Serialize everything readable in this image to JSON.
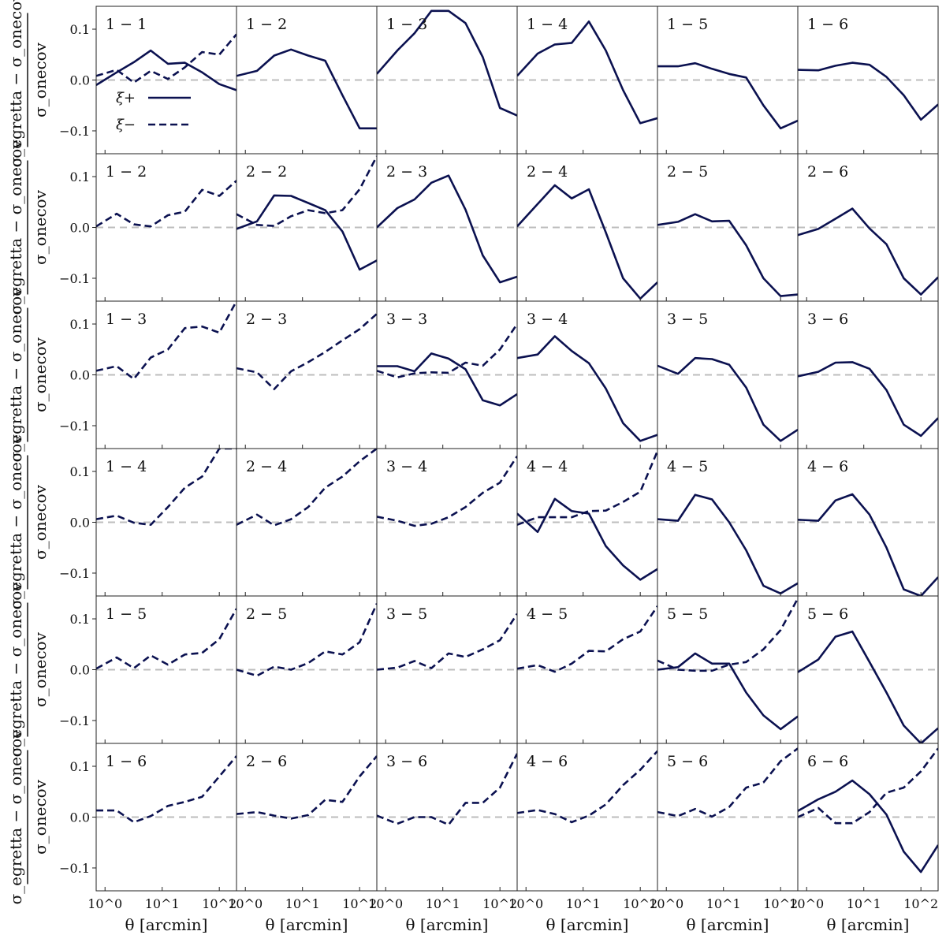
{
  "colors": {
    "series": "#0b1150",
    "zero_line": "#bdbdbd",
    "frame": "#222222"
  },
  "chart_data": {
    "type": "line",
    "grid": false,
    "layout": "6x6 small multiples",
    "xlabel": "θ [arcmin]",
    "ylabel_numerator": "σ_egretta − σ_onecov",
    "ylabel_denominator": "σ_onecov",
    "xscale": "log",
    "xlim": [
      0.7,
      200
    ],
    "ylim": [
      -0.145,
      0.145
    ],
    "x_ticks": [
      1,
      10,
      100
    ],
    "x_tick_labels": [
      "10^0",
      "10^1",
      "10^2"
    ],
    "y_ticks": [
      -0.1,
      0.0,
      0.1
    ],
    "y_tick_labels": [
      "−0.1",
      "0.0",
      "0.1"
    ],
    "reference_line": 0.0,
    "x": [
      0.7,
      1.6,
      3.2,
      6.3,
      12.6,
      25,
      50,
      100,
      200
    ],
    "legend": {
      "location": "upper-left panel",
      "entries": [
        {
          "label": "ξ+",
          "style": "solid"
        },
        {
          "label": "ξ−",
          "style": "dashed"
        }
      ]
    },
    "panels": [
      {
        "row": 0,
        "col": 0,
        "label": "1 − 1",
        "xi_plus": [
          -0.01,
          0.015,
          0.035,
          0.058,
          0.032,
          0.034,
          0.015,
          -0.008,
          -0.02
        ],
        "xi_minus": [
          0.008,
          0.02,
          -0.005,
          0.018,
          0.002,
          0.025,
          0.055,
          0.05,
          0.09
        ]
      },
      {
        "row": 0,
        "col": 1,
        "label": "1 − 2",
        "xi_plus": [
          0.008,
          0.018,
          0.048,
          0.06,
          0.048,
          0.038,
          -0.03,
          -0.095,
          -0.095
        ]
      },
      {
        "row": 0,
        "col": 2,
        "label": "1 − 3",
        "xi_plus": [
          0.012,
          0.058,
          0.092,
          0.136,
          0.136,
          0.112,
          0.045,
          -0.055,
          -0.07
        ]
      },
      {
        "row": 0,
        "col": 3,
        "label": "1 − 4",
        "xi_plus": [
          0.008,
          0.052,
          0.07,
          0.073,
          0.115,
          0.058,
          -0.02,
          -0.085,
          -0.075
        ]
      },
      {
        "row": 0,
        "col": 4,
        "label": "1 − 5",
        "xi_plus": [
          0.027,
          0.027,
          0.033,
          0.022,
          0.012,
          0.005,
          -0.05,
          -0.095,
          -0.08
        ]
      },
      {
        "row": 0,
        "col": 5,
        "label": "1 − 6",
        "xi_plus": [
          0.02,
          0.019,
          0.028,
          0.034,
          0.03,
          0.006,
          -0.03,
          -0.078,
          -0.048
        ]
      },
      {
        "row": 1,
        "col": 0,
        "label": "1 − 2",
        "xi_minus": [
          0.002,
          0.027,
          0.006,
          0.002,
          0.024,
          0.031,
          0.074,
          0.062,
          0.092
        ]
      },
      {
        "row": 1,
        "col": 1,
        "label": "2 − 2",
        "xi_plus": [
          -0.003,
          0.012,
          0.063,
          0.062,
          0.048,
          0.034,
          -0.008,
          -0.083,
          -0.065
        ],
        "xi_minus": [
          0.026,
          0.005,
          0.003,
          0.022,
          0.034,
          0.028,
          0.034,
          0.075,
          0.14
        ]
      },
      {
        "row": 1,
        "col": 2,
        "label": "2 − 3",
        "xi_plus": [
          0.0,
          0.038,
          0.055,
          0.088,
          0.102,
          0.035,
          -0.055,
          -0.108,
          -0.097
        ]
      },
      {
        "row": 1,
        "col": 3,
        "label": "2 − 4",
        "xi_plus": [
          0.002,
          0.046,
          0.083,
          0.057,
          0.075,
          -0.01,
          -0.1,
          -0.14,
          -0.108
        ]
      },
      {
        "row": 1,
        "col": 4,
        "label": "2 − 5",
        "xi_plus": [
          0.005,
          0.011,
          0.026,
          0.012,
          0.013,
          -0.035,
          -0.1,
          -0.135,
          -0.132
        ]
      },
      {
        "row": 1,
        "col": 5,
        "label": "2 − 6",
        "xi_plus": [
          -0.015,
          -0.003,
          0.017,
          0.037,
          -0.002,
          -0.033,
          -0.1,
          -0.132,
          -0.098
        ]
      },
      {
        "row": 2,
        "col": 0,
        "label": "1 − 3",
        "xi_minus": [
          0.008,
          0.017,
          -0.008,
          0.034,
          0.05,
          0.092,
          0.095,
          0.083,
          0.145
        ]
      },
      {
        "row": 2,
        "col": 1,
        "label": "2 − 3",
        "xi_minus": [
          0.013,
          0.005,
          -0.028,
          0.007,
          0.025,
          0.045,
          0.068,
          0.09,
          0.12
        ]
      },
      {
        "row": 2,
        "col": 2,
        "label": "3 − 3",
        "xi_plus": [
          0.017,
          0.017,
          0.007,
          0.042,
          0.032,
          0.011,
          -0.05,
          -0.06,
          -0.038
        ],
        "xi_minus": [
          0.008,
          -0.005,
          0.003,
          0.005,
          0.004,
          0.024,
          0.018,
          0.05,
          0.1
        ]
      },
      {
        "row": 2,
        "col": 3,
        "label": "3 − 4",
        "xi_plus": [
          0.033,
          0.04,
          0.076,
          0.047,
          0.023,
          -0.027,
          -0.095,
          -0.13,
          -0.118
        ]
      },
      {
        "row": 2,
        "col": 4,
        "label": "3 − 5",
        "xi_plus": [
          0.018,
          0.002,
          0.033,
          0.031,
          0.02,
          -0.025,
          -0.098,
          -0.13,
          -0.108
        ]
      },
      {
        "row": 2,
        "col": 5,
        "label": "3 − 6",
        "xi_plus": [
          -0.003,
          0.006,
          0.024,
          0.025,
          0.012,
          -0.03,
          -0.098,
          -0.12,
          -0.085
        ]
      },
      {
        "row": 3,
        "col": 0,
        "label": "1 − 4",
        "xi_minus": [
          0.006,
          0.013,
          -0.001,
          -0.005,
          0.03,
          0.068,
          0.09,
          0.145,
          0.145
        ]
      },
      {
        "row": 3,
        "col": 1,
        "label": "2 − 4",
        "xi_minus": [
          -0.005,
          0.015,
          -0.006,
          0.006,
          0.03,
          0.068,
          0.09,
          0.12,
          0.145
        ]
      },
      {
        "row": 3,
        "col": 2,
        "label": "3 − 4",
        "xi_minus": [
          0.011,
          0.003,
          -0.007,
          -0.003,
          0.01,
          0.03,
          0.058,
          0.078,
          0.13
        ]
      },
      {
        "row": 3,
        "col": 3,
        "label": "4 − 4",
        "xi_plus": [
          0.017,
          -0.019,
          0.046,
          0.022,
          0.017,
          -0.047,
          -0.085,
          -0.113,
          -0.092
        ],
        "xi_minus": [
          -0.005,
          0.01,
          0.01,
          0.01,
          0.022,
          0.023,
          0.04,
          0.06,
          0.14
        ]
      },
      {
        "row": 3,
        "col": 4,
        "label": "4 − 5",
        "xi_plus": [
          0.006,
          0.003,
          0.054,
          0.045,
          0.0,
          -0.055,
          -0.125,
          -0.14,
          -0.12
        ]
      },
      {
        "row": 3,
        "col": 5,
        "label": "4 − 6",
        "xi_plus": [
          0.005,
          0.003,
          0.043,
          0.055,
          0.015,
          -0.05,
          -0.132,
          -0.145,
          -0.108
        ]
      },
      {
        "row": 4,
        "col": 0,
        "label": "1 − 5",
        "xi_minus": [
          0.002,
          0.024,
          0.003,
          0.028,
          0.01,
          0.03,
          0.033,
          0.06,
          0.12
        ]
      },
      {
        "row": 4,
        "col": 1,
        "label": "2 − 5",
        "xi_minus": [
          0.0,
          -0.012,
          0.006,
          0.0,
          0.013,
          0.036,
          0.03,
          0.054,
          0.13
        ]
      },
      {
        "row": 4,
        "col": 2,
        "label": "3 − 5",
        "xi_minus": [
          0.0,
          0.004,
          0.017,
          0.003,
          0.032,
          0.025,
          0.04,
          0.058,
          0.11
        ]
      },
      {
        "row": 4,
        "col": 3,
        "label": "4 − 5",
        "xi_minus": [
          0.002,
          0.009,
          -0.004,
          0.012,
          0.037,
          0.036,
          0.06,
          0.075,
          0.125
        ]
      },
      {
        "row": 4,
        "col": 4,
        "label": "5 − 5",
        "xi_plus": [
          0.0,
          0.005,
          0.032,
          0.012,
          0.012,
          -0.045,
          -0.09,
          -0.117,
          -0.092
        ],
        "xi_minus": [
          0.018,
          0.0,
          -0.002,
          -0.002,
          0.01,
          0.015,
          0.04,
          0.078,
          0.14
        ]
      },
      {
        "row": 4,
        "col": 5,
        "label": "5 − 6",
        "xi_plus": [
          -0.005,
          0.02,
          0.065,
          0.075,
          0.015,
          -0.045,
          -0.11,
          -0.145,
          -0.115
        ]
      },
      {
        "row": 5,
        "col": 0,
        "label": "1 − 6",
        "xi_minus": [
          0.013,
          0.013,
          -0.01,
          0.002,
          0.022,
          0.03,
          0.04,
          0.08,
          0.12
        ]
      },
      {
        "row": 5,
        "col": 1,
        "label": "2 − 6",
        "xi_minus": [
          0.006,
          0.01,
          0.003,
          -0.003,
          0.004,
          0.034,
          0.03,
          0.08,
          0.12
        ]
      },
      {
        "row": 5,
        "col": 2,
        "label": "3 − 6",
        "xi_minus": [
          0.003,
          -0.013,
          0.0,
          0.0,
          -0.015,
          0.028,
          0.028,
          0.058,
          0.125
        ]
      },
      {
        "row": 5,
        "col": 3,
        "label": "4 − 6",
        "xi_minus": [
          0.008,
          0.014,
          0.006,
          -0.01,
          0.003,
          0.025,
          0.063,
          0.093,
          0.13
        ]
      },
      {
        "row": 5,
        "col": 4,
        "label": "5 − 6",
        "xi_minus": [
          0.01,
          0.002,
          0.016,
          0.001,
          0.02,
          0.058,
          0.068,
          0.11,
          0.135
        ]
      },
      {
        "row": 5,
        "col": 5,
        "label": "6 − 6",
        "xi_plus": [
          0.012,
          0.035,
          0.05,
          0.072,
          0.045,
          0.005,
          -0.068,
          -0.108,
          -0.055
        ],
        "xi_minus": [
          0.0,
          0.018,
          -0.012,
          -0.012,
          0.01,
          0.048,
          0.058,
          0.09,
          0.135
        ]
      }
    ]
  }
}
